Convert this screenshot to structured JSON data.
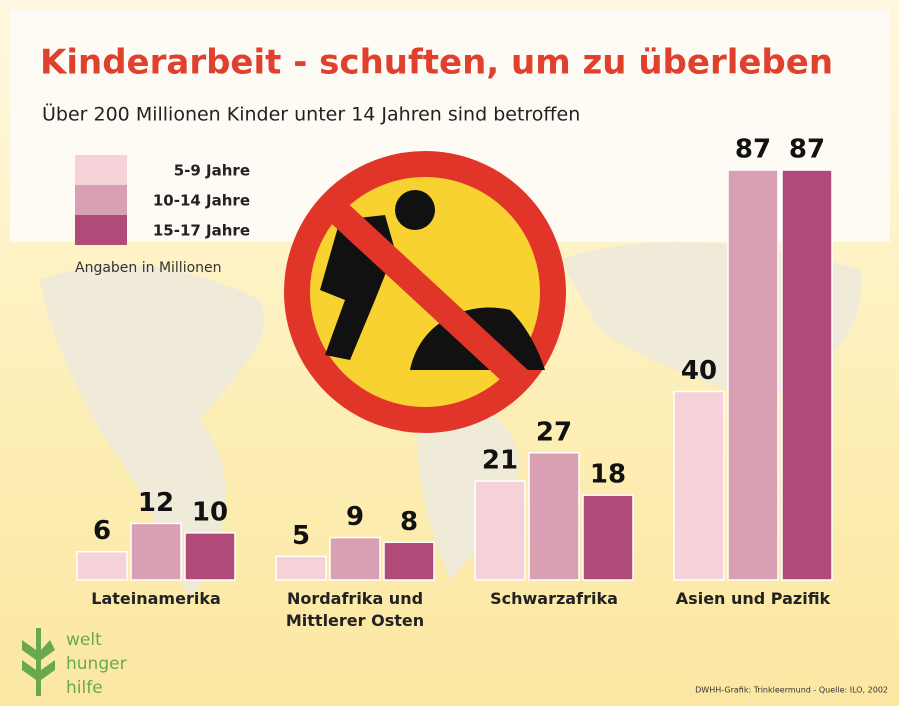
{
  "chart_data": {
    "type": "bar",
    "title": "Kinderarbeit - schuften, um zu überleben",
    "subtitle": "Über 200 Millionen Kinder unter 14 Jahren sind betroffen",
    "note": "Angaben in Millionen",
    "source": "DWHH-Grafik: Trinkleermund - Quelle: ILO, 2002",
    "logo": [
      "welt",
      "hunger",
      "hilfe"
    ],
    "categories": [
      "Lateinamerika",
      "Nordafrika und Mittlerer Osten",
      "Schwarzafrika",
      "Asien und Pazifik"
    ],
    "series": [
      {
        "name": "5-9 Jahre",
        "color": "#f5d2d8",
        "values": [
          6,
          5,
          21,
          40
        ]
      },
      {
        "name": "10-14 Jahre",
        "color": "#d9a0b4",
        "values": [
          12,
          9,
          27,
          87
        ]
      },
      {
        "name": "15-17 Jahre",
        "color": "#b04a78",
        "values": [
          10,
          8,
          18,
          87
        ]
      }
    ]
  }
}
